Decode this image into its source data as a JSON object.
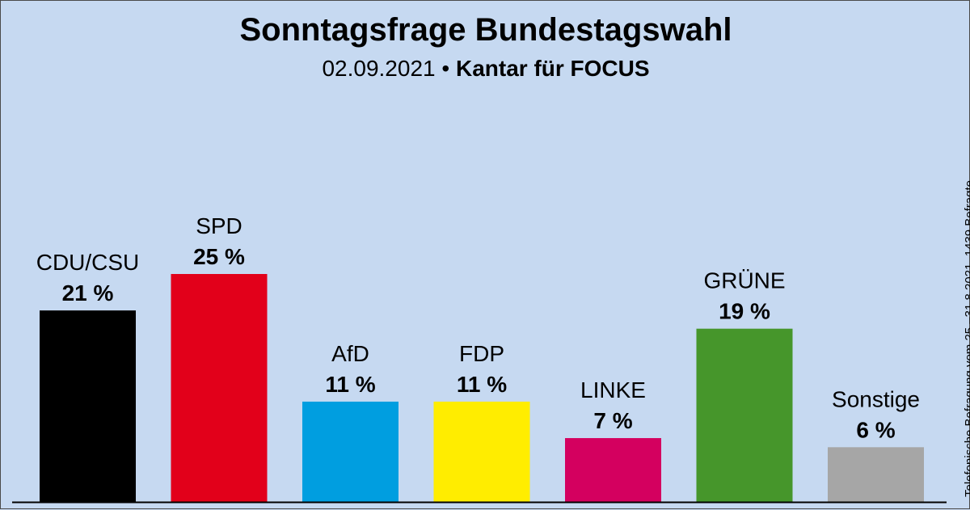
{
  "header": {
    "title": "Sonntagsfrage Bundestagswahl",
    "date": "02.09.2021",
    "separator": " • ",
    "source": "Kantar für FOCUS"
  },
  "side_note": "Telefonische Befragung vom 25.–31.8.2021, 1439 Befragte",
  "chart_data": {
    "type": "bar",
    "title": "Sonntagsfrage Bundestagswahl",
    "subtitle": "02.09.2021 • Kantar für FOCUS",
    "categories": [
      "CDU/CSU",
      "SPD",
      "AfD",
      "FDP",
      "LINKE",
      "GRÜNE",
      "Sonstige"
    ],
    "values": [
      21,
      25,
      11,
      11,
      7,
      19,
      6
    ],
    "value_labels": [
      "21 %",
      "25 %",
      "11 %",
      "11 %",
      "7 %",
      "19 %",
      "6 %"
    ],
    "colors": [
      "#000000",
      "#e2001a",
      "#009ee0",
      "#ffed00",
      "#d4005f",
      "#46962b",
      "#a6a6a6"
    ],
    "unit": "%",
    "grid": false,
    "legend": "none"
  }
}
